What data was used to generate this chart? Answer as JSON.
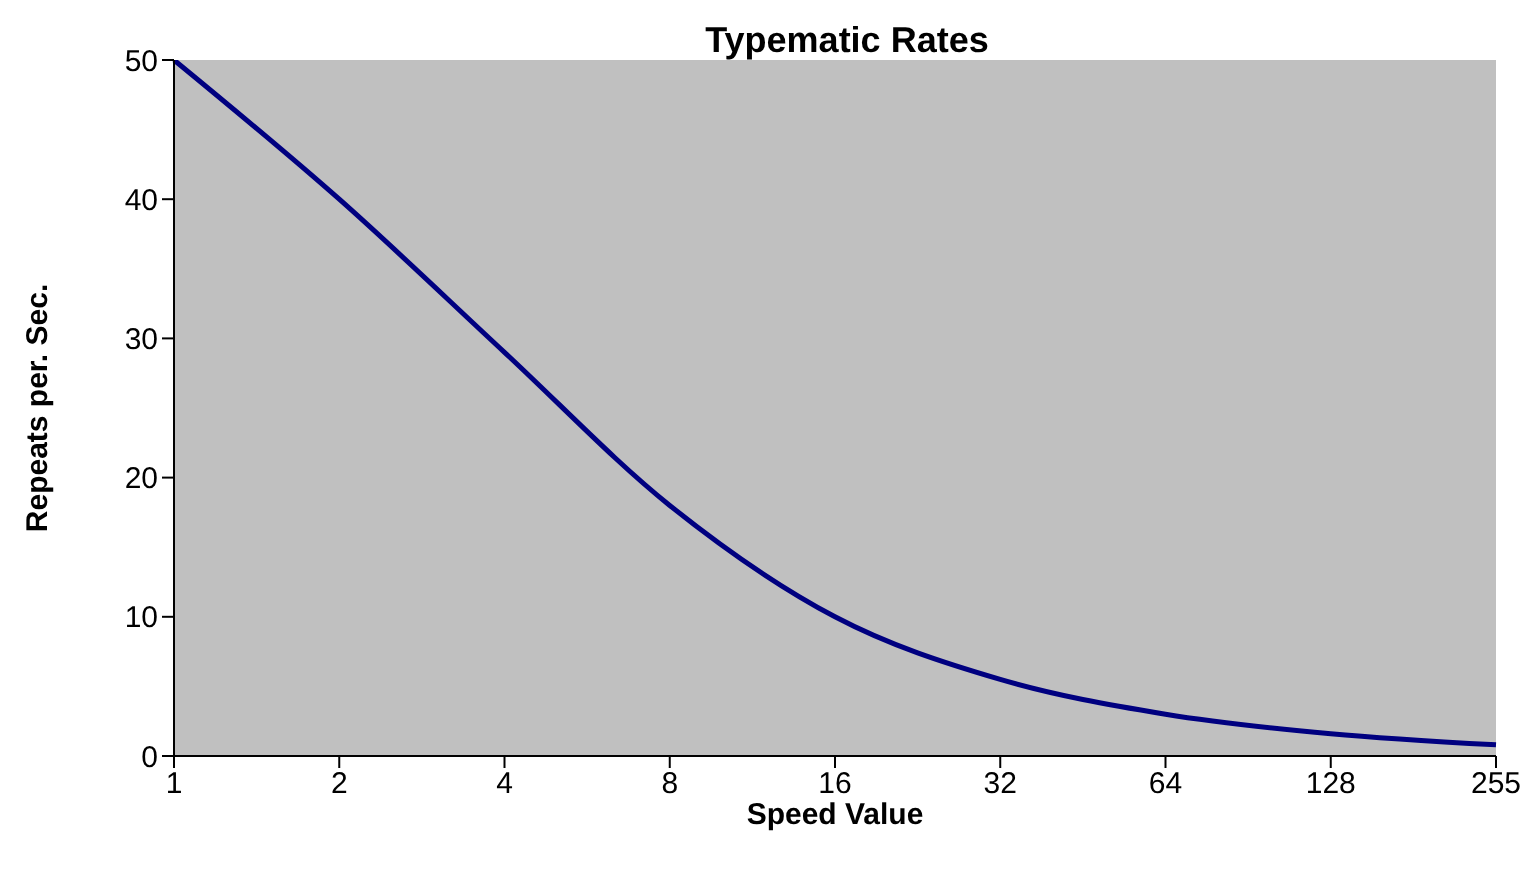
{
  "chart_data": {
    "type": "line",
    "title": "Typematic Rates",
    "xlabel": "Speed Value",
    "ylabel": "Repeats per. Sec.",
    "categories": [
      "1",
      "2",
      "4",
      "8",
      "16",
      "32",
      "64",
      "128",
      "255"
    ],
    "series": [
      {
        "color": "#000080",
        "values": [
          50,
          40,
          29,
          18,
          10,
          5.5,
          3,
          1.6,
          0.8
        ]
      }
    ],
    "ylim": [
      0,
      50
    ],
    "yticks": [
      0,
      10,
      20,
      30,
      40,
      50
    ],
    "legend": false,
    "marker": "none",
    "line_style": "solid"
  }
}
